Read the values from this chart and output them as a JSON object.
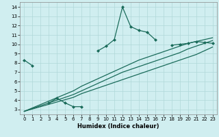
{
  "title": "",
  "xlabel": "Humidex (Indice chaleur)",
  "bg_color": "#d0eef0",
  "line_color": "#1a6b5a",
  "grid_color": "#b0d8d8",
  "xlim": [
    -0.5,
    23.5
  ],
  "ylim": [
    2.5,
    14.5
  ],
  "xticks": [
    0,
    1,
    2,
    3,
    4,
    5,
    6,
    7,
    8,
    9,
    10,
    11,
    12,
    13,
    14,
    15,
    16,
    17,
    18,
    19,
    20,
    21,
    22,
    23
  ],
  "yticks": [
    3,
    4,
    5,
    6,
    7,
    8,
    9,
    10,
    11,
    12,
    13,
    14
  ],
  "line1_x": [
    0,
    1,
    3,
    4,
    5,
    6,
    7,
    9,
    10,
    11,
    12,
    13,
    14,
    15,
    16,
    18,
    19,
    20,
    21,
    22,
    23
  ],
  "line1_y": [
    8.3,
    7.7,
    3.7,
    4.2,
    3.7,
    3.3,
    3.3,
    9.3,
    9.8,
    10.5,
    14.0,
    11.9,
    11.5,
    11.3,
    10.5,
    9.9,
    10.0,
    10.1,
    10.3,
    10.2,
    10.1
  ],
  "line1_breaks": [
    [
      1,
      3
    ],
    [
      7,
      9
    ],
    [
      16,
      18
    ]
  ],
  "line2_x": [
    0,
    6,
    7,
    8,
    9,
    10,
    11,
    12,
    13,
    14,
    15,
    16,
    17,
    18,
    19,
    20,
    21,
    22,
    23
  ],
  "line2_y": [
    2.8,
    4.3,
    4.7,
    5.0,
    5.3,
    5.6,
    5.9,
    6.2,
    6.5,
    6.8,
    7.1,
    7.4,
    7.7,
    8.0,
    8.3,
    8.6,
    8.9,
    9.3,
    9.7
  ],
  "line3_x": [
    0,
    6,
    7,
    8,
    9,
    10,
    11,
    12,
    13,
    14,
    15,
    16,
    17,
    18,
    19,
    20,
    21,
    22,
    23
  ],
  "line3_y": [
    2.8,
    4.6,
    5.0,
    5.4,
    5.8,
    6.2,
    6.6,
    7.0,
    7.3,
    7.6,
    7.9,
    8.2,
    8.5,
    8.8,
    9.1,
    9.5,
    9.8,
    10.1,
    10.4
  ],
  "line4_x": [
    0,
    6,
    7,
    8,
    9,
    10,
    11,
    12,
    13,
    14,
    15,
    16,
    17,
    18,
    19,
    20,
    21,
    22,
    23
  ],
  "line4_y": [
    2.8,
    5.0,
    5.5,
    5.9,
    6.3,
    6.7,
    7.1,
    7.5,
    7.9,
    8.3,
    8.6,
    8.9,
    9.2,
    9.5,
    9.8,
    10.1,
    10.3,
    10.5,
    10.7
  ],
  "markersize": 2.5
}
